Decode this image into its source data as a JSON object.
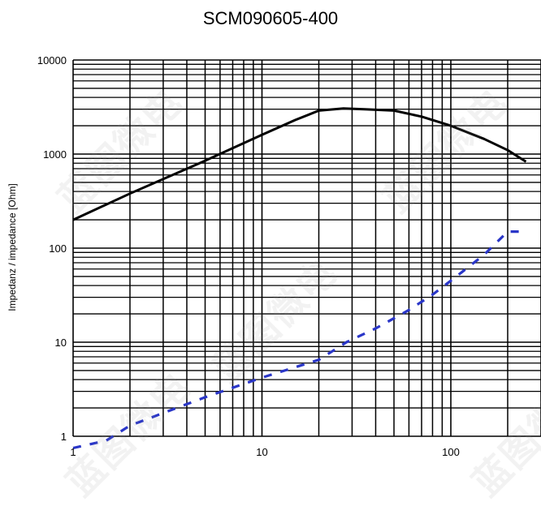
{
  "chart_data": {
    "type": "line",
    "title": "SCM090605-400",
    "ylabel": "Impedanz / impedance [Ohm]",
    "xlabel": "",
    "x_scale": "log",
    "y_scale": "log",
    "xlim": [
      1,
      250
    ],
    "ylim": [
      1,
      10000
    ],
    "x_ticks": [
      "1",
      "10",
      "100"
    ],
    "y_ticks": [
      "1",
      "10",
      "100",
      "1000",
      "10000"
    ],
    "grid": true,
    "legend": "none",
    "series": [
      {
        "style": "solid",
        "color": "#000000",
        "x": [
          1,
          2,
          5,
          10,
          15,
          20,
          27,
          35,
          50,
          70,
          100,
          150,
          200,
          250
        ],
        "y": [
          200,
          380,
          850,
          1600,
          2300,
          2900,
          3050,
          3000,
          2900,
          2500,
          2000,
          1450,
          1100,
          830
        ]
      },
      {
        "style": "dashed",
        "color": "#2a36c8",
        "x": [
          1,
          1.5,
          2,
          5,
          10,
          20,
          28,
          40,
          60,
          80,
          100,
          150,
          200,
          250
        ],
        "y": [
          0.75,
          0.9,
          1.3,
          2.6,
          4.2,
          6.5,
          10,
          14,
          22,
          32,
          45,
          85,
          150,
          150
        ]
      }
    ]
  },
  "watermark": {
    "text": "蓝图微电"
  }
}
